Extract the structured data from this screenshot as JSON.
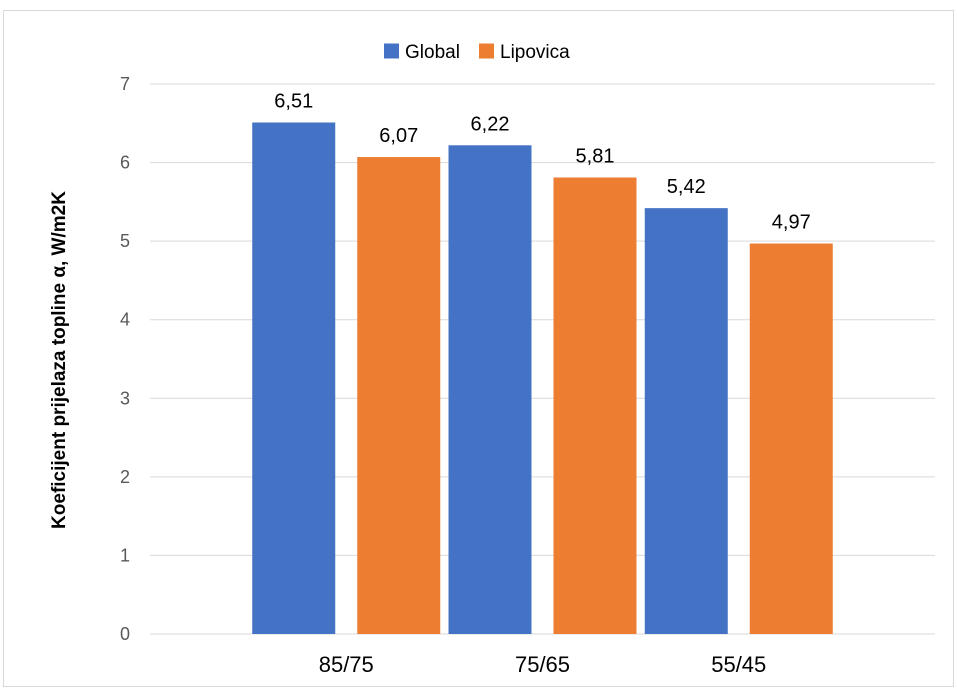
{
  "chart_data": {
    "type": "bar",
    "categories": [
      "85/75",
      "75/65",
      "55/45"
    ],
    "series": [
      {
        "name": "Global",
        "color": "#4472C4",
        "values": [
          6.51,
          6.22,
          5.42
        ],
        "labels": [
          "6,51",
          "6,22",
          "5,42"
        ]
      },
      {
        "name": "Lipovica",
        "color": "#ED7D31",
        "values": [
          6.07,
          5.81,
          4.97
        ],
        "labels": [
          "6,07",
          "5,81",
          "4,97"
        ]
      }
    ],
    "title": "",
    "xlabel": "",
    "ylabel": "Koeficijent prijelaza topline α, W/m2K",
    "ylim": [
      0,
      7
    ],
    "yticks": [
      "0",
      "1",
      "2",
      "3",
      "4",
      "5",
      "6",
      "7"
    ],
    "grid": true,
    "legend_position": "top-center",
    "gridline_color": "#d9d9d9"
  }
}
